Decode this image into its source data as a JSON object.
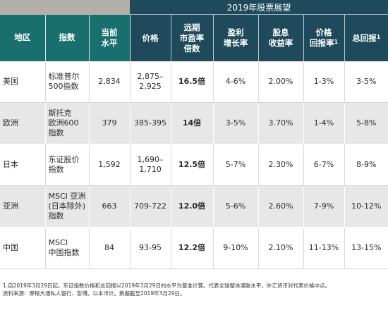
{
  "header": {
    "band_title": "2019年股票展望",
    "columns": {
      "region": "地区",
      "index": "指数",
      "current_level": [
        "当前",
        "水平"
      ],
      "price": "价格",
      "forward_pe": [
        "远期",
        "市盈率",
        "倍数"
      ],
      "earnings_growth": [
        "盈利",
        "增长率"
      ],
      "dividend_yield": [
        "股息",
        "收益率"
      ],
      "price_return": [
        "价格",
        "回报率"
      ],
      "total_return": "总回报",
      "footnote_mark": "1"
    }
  },
  "rows": [
    {
      "region": "美国",
      "index": [
        "标准普尔",
        "500指数"
      ],
      "level": "2,834",
      "price": [
        "2,875–",
        "2,925"
      ],
      "pe": "16.5倍",
      "growth": "4-6%",
      "yield": "2.00%",
      "price_return": "1-3%",
      "total_return": "3-5%"
    },
    {
      "region": "欧洲",
      "index": [
        "斯托克",
        "欧洲600",
        "指数"
      ],
      "level": "379",
      "price": [
        "385-395"
      ],
      "pe": "14倍",
      "growth": "3-5%",
      "yield": "3.70%",
      "price_return": "1-4%",
      "total_return": "5-8%"
    },
    {
      "region": "日本",
      "index": [
        "东证股价",
        "指数"
      ],
      "level": "1,592",
      "price": [
        "1,690–",
        "1,710"
      ],
      "pe": "12.5倍",
      "growth": "5-7%",
      "yield": "2.30%",
      "price_return": "6-7%",
      "total_return": "8-9%"
    },
    {
      "region": "亚洲",
      "index": [
        "MSCI 亚洲",
        "(日本除外)",
        "指数"
      ],
      "level": "663",
      "price": [
        "709-722"
      ],
      "pe": "12.0倍",
      "growth": "5-6%",
      "yield": "2.60%",
      "price_return": "7-9%",
      "total_return": "10-12%"
    },
    {
      "region": "中国",
      "index": [
        "MSCI",
        "中国指数"
      ],
      "level": "84",
      "price": [
        "93-95"
      ],
      "pe": "12.2倍",
      "growth": "9-10%",
      "yield": "2.10%",
      "price_return": "11-13%",
      "total_return": "13-15%"
    }
  ],
  "notes": {
    "line1": "1.自2019年3月29日起。东证指数价格和总回报以2019年3月29日的水平为基准计算。代表全球整体通胀水平。外汇货币对代表价格中点。",
    "line2": "资料来源：摩根大通私人银行、彭博。以本币计。数据截至2019年3月29日。"
  },
  "colors": {
    "teal_header": "#196f6e",
    "navy_header": "#1e4a5c",
    "gray_band": "#b3b0a9",
    "row_alt": "#e7e7e7"
  }
}
